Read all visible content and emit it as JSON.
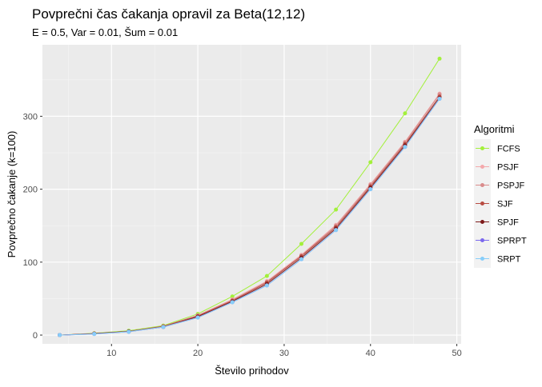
{
  "chart_data": {
    "type": "line",
    "title": "Povprečni čas čakanja opravil za Beta(12,12)",
    "subtitle": "E = 0.5, Var = 0.01, Šum = 0.01",
    "xlabel": "Število prihodov",
    "ylabel": "Povprečno čakanje (k=100)",
    "xlim": [
      2,
      50.5
    ],
    "ylim": [
      -12,
      398
    ],
    "x_ticks": [
      10,
      20,
      30,
      40,
      50
    ],
    "y_ticks": [
      0,
      100,
      200,
      300
    ],
    "grid": true,
    "legend_title": "Algoritmi",
    "legend_position": "right",
    "x": [
      4,
      8,
      12,
      16,
      20,
      24,
      28,
      32,
      36,
      40,
      44,
      48
    ],
    "series": [
      {
        "name": "FCFS",
        "color": "#a3f03b",
        "values": [
          0,
          2.5,
          6,
          13,
          29,
          53,
          81,
          125,
          172,
          237,
          304,
          379
        ]
      },
      {
        "name": "PSJF",
        "color": "#f4a8ab",
        "values": [
          0,
          2,
          5,
          12,
          27,
          49,
          74,
          110,
          151,
          207,
          265,
          331
        ]
      },
      {
        "name": "PSPJF",
        "color": "#d98b8b",
        "values": [
          0,
          2,
          5,
          12,
          27,
          48,
          73,
          109,
          150,
          206,
          264,
          330
        ]
      },
      {
        "name": "SJF",
        "color": "#b84c42",
        "values": [
          0,
          2,
          5,
          12,
          26,
          47,
          72,
          108,
          148,
          204,
          262,
          327
        ]
      },
      {
        "name": "SPJF",
        "color": "#7d1a1a",
        "values": [
          0,
          2,
          5,
          11,
          25,
          46,
          70,
          106,
          146,
          202,
          260,
          325
        ]
      },
      {
        "name": "SPRPT",
        "color": "#7b68ee",
        "values": [
          0,
          1.5,
          4.5,
          11,
          24,
          45,
          68,
          104,
          144,
          200,
          258,
          324
        ]
      },
      {
        "name": "SRPT",
        "color": "#87cefa",
        "values": [
          0,
          1.5,
          4.5,
          11,
          24,
          45,
          68,
          104,
          144,
          200,
          258,
          324
        ]
      }
    ]
  }
}
